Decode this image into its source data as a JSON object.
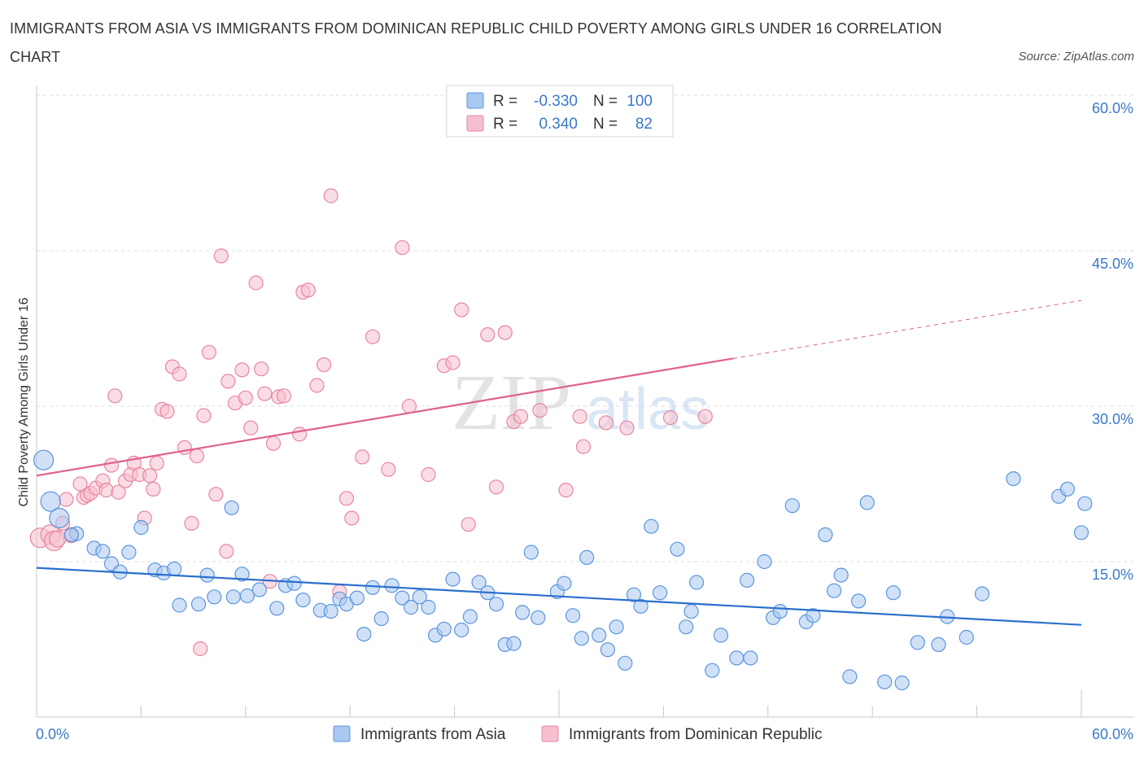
{
  "header": {
    "title": "IMMIGRANTS FROM ASIA VS IMMIGRANTS FROM DOMINICAN REPUBLIC CHILD POVERTY AMONG GIRLS UNDER 16 CORRELATION CHART",
    "source": "Source: ZipAtlas.com"
  },
  "watermark": {
    "zip": "ZIP",
    "atlas": "atlas"
  },
  "legend_box": {
    "rows": [
      {
        "r_label": "R =",
        "r_value": "-0.330",
        "n_label": "N =",
        "n_value": "100"
      },
      {
        "r_label": "R =",
        "r_value": "0.340",
        "n_label": "N =",
        "n_value": "82"
      }
    ]
  },
  "colors": {
    "asia": "#5b95dd",
    "asia_fill": "#a9c8f0",
    "asia_line": "#2a6fcc",
    "dominican": "#e8869f",
    "dominican_fill": "#f6bfcf",
    "dominican_line": "#e0618b",
    "accent_text": "#3a78c9",
    "grid": "#dcdcdc"
  },
  "chart_data": {
    "type": "scatter",
    "title": "IMMIGRANTS FROM ASIA VS IMMIGRANTS FROM DOMINICAN REPUBLIC CHILD POVERTY AMONG GIRLS UNDER 16 CORRELATION CHART",
    "xlabel": "",
    "ylabel": "Child Poverty Among Girls Under 16",
    "xlim": [
      0,
      60
    ],
    "ylim": [
      0,
      60
    ],
    "x_tick_labels": [
      "0.0%",
      "60.0%"
    ],
    "y_tick_labels": [
      "15.0%",
      "30.0%",
      "45.0%",
      "60.0%"
    ],
    "y_ticks": [
      15,
      30,
      45,
      60
    ],
    "grid": true,
    "legend_position": "bottom",
    "series": [
      {
        "name": "Immigrants from Asia",
        "R": -0.33,
        "N": 100,
        "trend": {
          "x": [
            0,
            60
          ],
          "y": [
            14.4,
            8.9
          ]
        },
        "points": [
          [
            0.4,
            24.8
          ],
          [
            0.8,
            20.8
          ],
          [
            1.3,
            19.2
          ],
          [
            2.3,
            17.7
          ],
          [
            2.0,
            17.6
          ],
          [
            3.3,
            16.3
          ],
          [
            3.8,
            16.0
          ],
          [
            5.3,
            15.9
          ],
          [
            4.3,
            14.8
          ],
          [
            4.8,
            14.0
          ],
          [
            6.8,
            14.2
          ],
          [
            7.3,
            13.9
          ],
          [
            7.9,
            14.3
          ],
          [
            9.8,
            13.7
          ],
          [
            11.8,
            13.8
          ],
          [
            6.0,
            18.3
          ],
          [
            11.2,
            20.2
          ],
          [
            8.2,
            10.8
          ],
          [
            9.3,
            10.9
          ],
          [
            10.2,
            11.6
          ],
          [
            11.3,
            11.6
          ],
          [
            12.1,
            11.7
          ],
          [
            12.8,
            12.3
          ],
          [
            13.8,
            10.5
          ],
          [
            14.3,
            12.7
          ],
          [
            14.8,
            12.9
          ],
          [
            15.3,
            11.3
          ],
          [
            16.3,
            10.3
          ],
          [
            16.9,
            10.2
          ],
          [
            17.4,
            11.4
          ],
          [
            17.8,
            10.9
          ],
          [
            18.4,
            11.5
          ],
          [
            18.8,
            8.0
          ],
          [
            19.3,
            12.5
          ],
          [
            19.8,
            9.5
          ],
          [
            20.4,
            12.7
          ],
          [
            21.0,
            11.5
          ],
          [
            21.5,
            10.6
          ],
          [
            22.0,
            11.6
          ],
          [
            22.5,
            10.6
          ],
          [
            22.9,
            7.9
          ],
          [
            23.4,
            8.5
          ],
          [
            23.9,
            13.3
          ],
          [
            24.4,
            8.4
          ],
          [
            24.9,
            9.7
          ],
          [
            25.4,
            13.0
          ],
          [
            25.9,
            12.0
          ],
          [
            26.4,
            10.9
          ],
          [
            26.9,
            7.0
          ],
          [
            27.4,
            7.1
          ],
          [
            27.9,
            10.1
          ],
          [
            28.4,
            15.9
          ],
          [
            28.8,
            9.6
          ],
          [
            29.9,
            12.1
          ],
          [
            30.3,
            12.9
          ],
          [
            30.8,
            9.8
          ],
          [
            31.3,
            7.6
          ],
          [
            31.6,
            15.4
          ],
          [
            32.3,
            7.9
          ],
          [
            32.8,
            6.5
          ],
          [
            33.3,
            8.7
          ],
          [
            33.8,
            5.2
          ],
          [
            34.3,
            11.8
          ],
          [
            34.7,
            10.7
          ],
          [
            35.3,
            18.4
          ],
          [
            35.8,
            12.0
          ],
          [
            36.8,
            16.2
          ],
          [
            37.3,
            8.7
          ],
          [
            37.6,
            10.2
          ],
          [
            37.9,
            13.0
          ],
          [
            38.8,
            4.5
          ],
          [
            39.3,
            7.9
          ],
          [
            40.2,
            5.7
          ],
          [
            40.8,
            13.2
          ],
          [
            41.0,
            5.7
          ],
          [
            41.8,
            15.0
          ],
          [
            42.3,
            9.6
          ],
          [
            42.7,
            10.2
          ],
          [
            43.4,
            20.4
          ],
          [
            44.2,
            9.2
          ],
          [
            44.6,
            9.8
          ],
          [
            45.3,
            17.6
          ],
          [
            45.8,
            12.2
          ],
          [
            46.2,
            13.7
          ],
          [
            46.7,
            3.9
          ],
          [
            47.2,
            11.2
          ],
          [
            47.7,
            20.7
          ],
          [
            48.7,
            3.4
          ],
          [
            49.2,
            12.0
          ],
          [
            49.7,
            3.3
          ],
          [
            50.6,
            7.2
          ],
          [
            51.8,
            7.0
          ],
          [
            52.3,
            9.7
          ],
          [
            53.4,
            7.7
          ],
          [
            54.3,
            11.9
          ],
          [
            56.1,
            23.0
          ],
          [
            58.7,
            21.3
          ],
          [
            60.0,
            17.8
          ],
          [
            59.2,
            22.0
          ],
          [
            60.2,
            20.6
          ]
        ]
      },
      {
        "name": "Immigrants from Dominican Republic",
        "R": 0.34,
        "N": 82,
        "trend": {
          "x": [
            0,
            40
          ],
          "y": [
            23.3,
            34.6
          ]
        },
        "trend_extension": {
          "x": [
            40,
            60
          ],
          "y": [
            34.6,
            40.2
          ]
        },
        "points": [
          [
            0.2,
            17.3
          ],
          [
            0.8,
            17.6
          ],
          [
            1.0,
            17.0
          ],
          [
            1.2,
            17.2
          ],
          [
            1.5,
            18.7
          ],
          [
            1.7,
            21.0
          ],
          [
            2.0,
            17.5
          ],
          [
            2.5,
            22.5
          ],
          [
            2.7,
            21.2
          ],
          [
            2.9,
            21.4
          ],
          [
            3.1,
            21.6
          ],
          [
            3.4,
            22.1
          ],
          [
            3.8,
            22.8
          ],
          [
            4.0,
            21.9
          ],
          [
            4.3,
            24.3
          ],
          [
            4.5,
            31.0
          ],
          [
            4.7,
            21.7
          ],
          [
            5.1,
            22.8
          ],
          [
            5.4,
            23.4
          ],
          [
            5.6,
            24.5
          ],
          [
            5.9,
            23.4
          ],
          [
            6.2,
            19.2
          ],
          [
            6.5,
            23.3
          ],
          [
            6.7,
            22.0
          ],
          [
            6.9,
            24.5
          ],
          [
            7.2,
            29.7
          ],
          [
            7.5,
            29.5
          ],
          [
            7.8,
            33.8
          ],
          [
            8.2,
            33.1
          ],
          [
            8.5,
            26.0
          ],
          [
            8.9,
            18.7
          ],
          [
            9.2,
            25.2
          ],
          [
            9.4,
            6.6
          ],
          [
            9.6,
            29.1
          ],
          [
            9.9,
            35.2
          ],
          [
            10.3,
            21.5
          ],
          [
            10.6,
            44.5
          ],
          [
            10.9,
            16.0
          ],
          [
            11.0,
            32.4
          ],
          [
            11.4,
            30.3
          ],
          [
            11.8,
            33.5
          ],
          [
            12.0,
            30.8
          ],
          [
            12.3,
            27.9
          ],
          [
            12.6,
            41.9
          ],
          [
            12.9,
            33.6
          ],
          [
            13.1,
            31.2
          ],
          [
            13.4,
            13.1
          ],
          [
            13.6,
            26.4
          ],
          [
            13.9,
            30.9
          ],
          [
            14.2,
            31.0
          ],
          [
            15.1,
            27.3
          ],
          [
            15.3,
            41.0
          ],
          [
            15.6,
            41.2
          ],
          [
            16.1,
            32.0
          ],
          [
            16.5,
            34.0
          ],
          [
            16.9,
            50.3
          ],
          [
            17.4,
            12.1
          ],
          [
            17.8,
            21.1
          ],
          [
            18.1,
            19.2
          ],
          [
            18.7,
            25.1
          ],
          [
            19.3,
            36.7
          ],
          [
            20.2,
            23.9
          ],
          [
            21.0,
            45.3
          ],
          [
            21.4,
            30.0
          ],
          [
            22.5,
            23.4
          ],
          [
            23.4,
            33.9
          ],
          [
            23.9,
            34.2
          ],
          [
            24.4,
            39.3
          ],
          [
            24.8,
            18.6
          ],
          [
            25.9,
            36.9
          ],
          [
            26.4,
            22.2
          ],
          [
            26.9,
            37.1
          ],
          [
            27.4,
            28.5
          ],
          [
            27.8,
            29.0
          ],
          [
            28.9,
            29.6
          ],
          [
            30.4,
            21.9
          ],
          [
            31.2,
            29.0
          ],
          [
            31.4,
            26.1
          ],
          [
            32.7,
            28.4
          ],
          [
            33.9,
            27.9
          ],
          [
            36.4,
            28.9
          ],
          [
            38.4,
            29.0
          ]
        ]
      }
    ]
  },
  "bottom_legend": {
    "items": [
      {
        "label": "Immigrants from Asia"
      },
      {
        "label": "Immigrants from Dominican Republic"
      }
    ]
  }
}
